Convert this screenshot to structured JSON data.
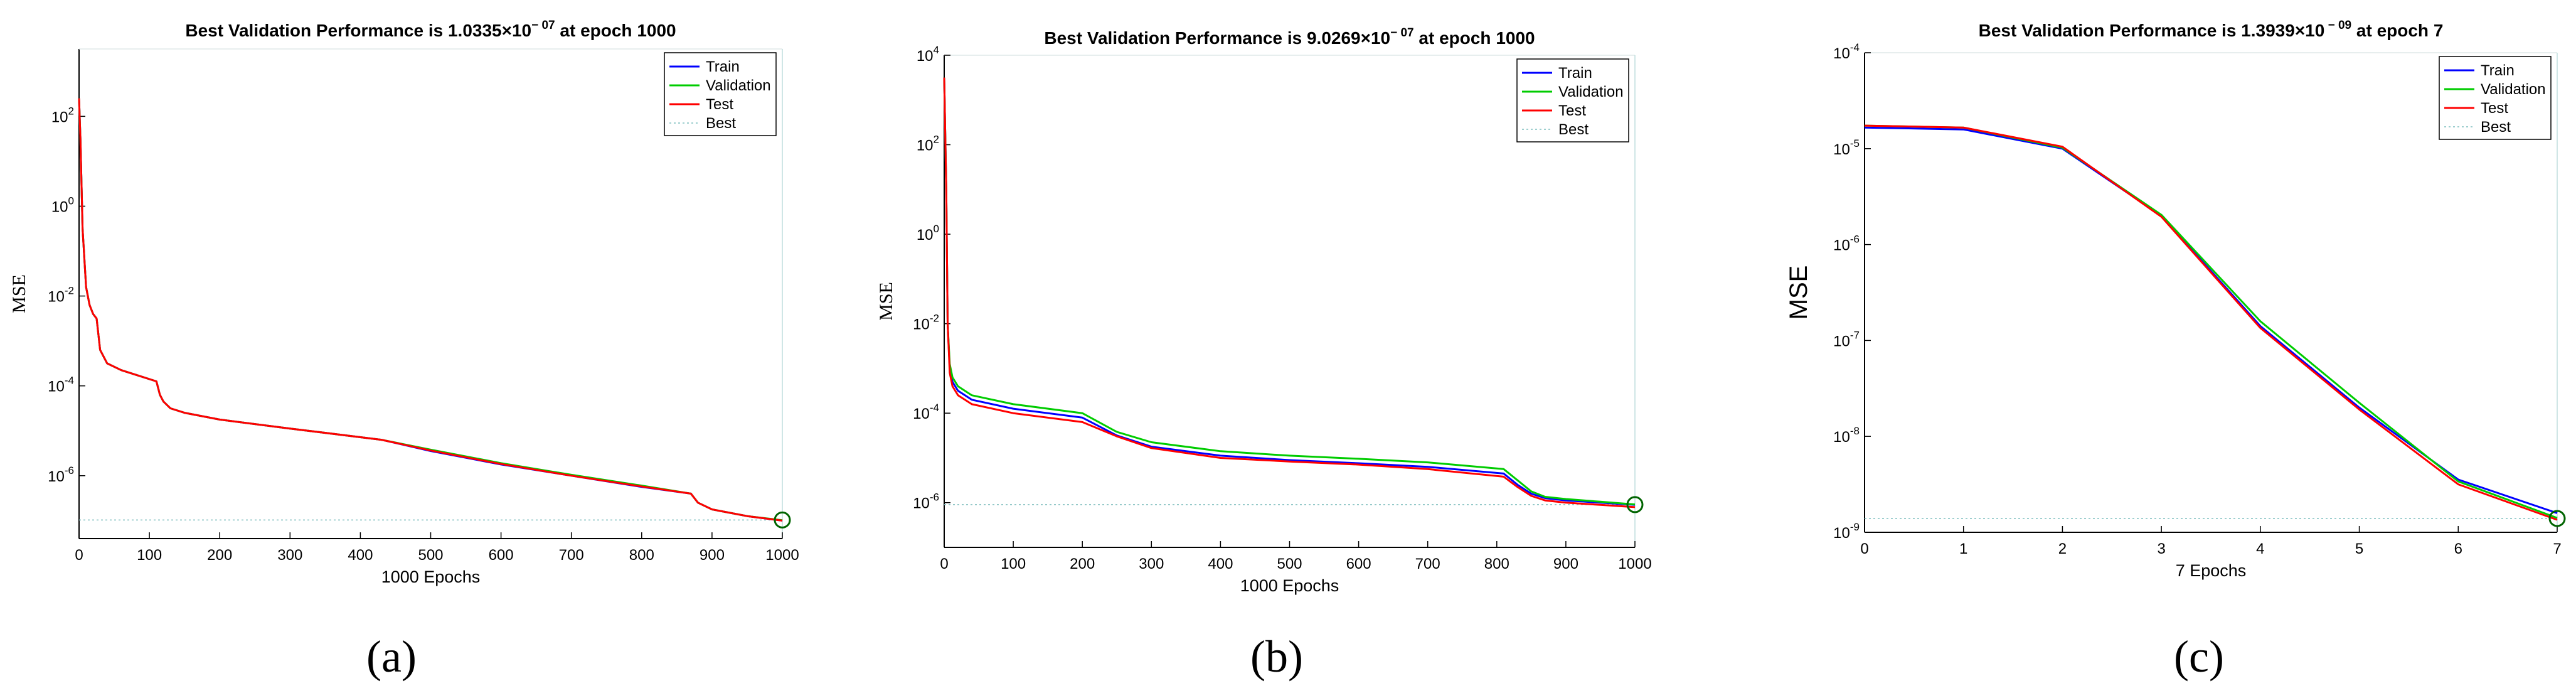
{
  "figure": {
    "captions": [
      "(a)",
      "(b)",
      "(c)"
    ]
  },
  "colors": {
    "train": "#0000ff",
    "validation": "#00cc00",
    "test": "#ff0000",
    "best": "#7fbfbf",
    "marker": "#006400"
  },
  "chart_data": [
    {
      "type": "line",
      "title_main": "Best Validation Performance is 1.0335×10",
      "title_exp": "− 07",
      "title_tail": " at epoch 1000",
      "xlabel": "1000 Epochs",
      "ylabel": "MSE",
      "yscale": "log",
      "xlim": [
        0,
        1000
      ],
      "ylim_exp": [
        -7.4,
        3.5
      ],
      "xticks": [
        0,
        100,
        200,
        300,
        400,
        500,
        600,
        700,
        800,
        900,
        1000
      ],
      "yticks_exp": [
        2,
        0,
        -2,
        -4,
        -6
      ],
      "legend": [
        "Train",
        "Validation",
        "Test",
        "Best"
      ],
      "best": {
        "epoch": 1000,
        "value_exp": -6.986
      },
      "series": [
        {
          "name": "Train",
          "x": [
            0,
            2,
            5,
            10,
            15,
            20,
            25,
            30,
            40,
            60,
            80,
            110,
            115,
            120,
            130,
            150,
            200,
            300,
            430,
            500,
            600,
            700,
            800,
            870,
            880,
            900,
            950,
            1000
          ],
          "y_exp": [
            2.4,
            1.5,
            -0.5,
            -1.8,
            -2.2,
            -2.4,
            -2.5,
            -3.2,
            -3.5,
            -3.65,
            -3.75,
            -3.9,
            -4.2,
            -4.35,
            -4.5,
            -4.6,
            -4.75,
            -4.95,
            -5.2,
            -5.45,
            -5.75,
            -6.0,
            -6.25,
            -6.4,
            -6.6,
            -6.75,
            -6.9,
            -7.0
          ]
        },
        {
          "name": "Validation",
          "x": [
            0,
            2,
            5,
            10,
            15,
            20,
            25,
            30,
            40,
            60,
            80,
            110,
            115,
            120,
            130,
            150,
            200,
            300,
            430,
            500,
            600,
            700,
            800,
            870,
            880,
            900,
            950,
            1000
          ],
          "y_exp": [
            2.4,
            1.5,
            -0.5,
            -1.8,
            -2.2,
            -2.4,
            -2.5,
            -3.2,
            -3.5,
            -3.65,
            -3.75,
            -3.9,
            -4.2,
            -4.35,
            -4.5,
            -4.6,
            -4.75,
            -4.95,
            -5.2,
            -5.42,
            -5.72,
            -5.98,
            -6.22,
            -6.4,
            -6.6,
            -6.75,
            -6.9,
            -6.99
          ]
        },
        {
          "name": "Test",
          "x": [
            0,
            2,
            5,
            10,
            15,
            20,
            25,
            30,
            40,
            60,
            80,
            110,
            115,
            120,
            130,
            150,
            200,
            300,
            430,
            500,
            600,
            700,
            800,
            870,
            880,
            900,
            950,
            1000
          ],
          "y_exp": [
            2.4,
            1.5,
            -0.5,
            -1.8,
            -2.2,
            -2.4,
            -2.5,
            -3.2,
            -3.5,
            -3.65,
            -3.75,
            -3.9,
            -4.2,
            -4.35,
            -4.5,
            -4.6,
            -4.75,
            -4.95,
            -5.2,
            -5.44,
            -5.74,
            -6.0,
            -6.24,
            -6.4,
            -6.6,
            -6.75,
            -6.9,
            -7.0
          ]
        }
      ]
    },
    {
      "type": "line",
      "title_main": "Best Validation Performance is 9.0269×10",
      "title_exp": "− 07",
      "title_tail": " at epoch 1000",
      "xlabel": "1000 Epochs",
      "ylabel": "MSE",
      "yscale": "log",
      "xlim": [
        0,
        1000
      ],
      "ylim_exp": [
        -7,
        4
      ],
      "xticks": [
        0,
        100,
        200,
        300,
        400,
        500,
        600,
        700,
        800,
        900,
        1000
      ],
      "yticks_exp": [
        4,
        2,
        0,
        -2,
        -4,
        -6
      ],
      "legend": [
        "Train",
        "Validation",
        "Test",
        "Best"
      ],
      "best": {
        "epoch": 1000,
        "value_exp": -6.0445
      },
      "series": [
        {
          "name": "Train",
          "x": [
            0,
            3,
            5,
            8,
            12,
            20,
            40,
            100,
            200,
            250,
            300,
            400,
            500,
            600,
            700,
            810,
            830,
            850,
            870,
            900,
            950,
            1000
          ],
          "y_exp": [
            3.5,
            1.0,
            -2.0,
            -3.0,
            -3.3,
            -3.5,
            -3.7,
            -3.9,
            -4.1,
            -4.5,
            -4.75,
            -4.95,
            -5.05,
            -5.12,
            -5.2,
            -5.35,
            -5.6,
            -5.8,
            -5.9,
            -5.95,
            -6.0,
            -6.05
          ]
        },
        {
          "name": "Validation",
          "x": [
            0,
            3,
            5,
            8,
            12,
            20,
            40,
            100,
            200,
            250,
            300,
            400,
            500,
            600,
            700,
            810,
            830,
            850,
            870,
            900,
            950,
            1000
          ],
          "y_exp": [
            3.5,
            1.0,
            -2.0,
            -2.9,
            -3.2,
            -3.4,
            -3.6,
            -3.8,
            -4.0,
            -4.42,
            -4.65,
            -4.85,
            -4.95,
            -5.02,
            -5.1,
            -5.25,
            -5.5,
            -5.75,
            -5.87,
            -5.92,
            -5.98,
            -6.04
          ]
        },
        {
          "name": "Test",
          "x": [
            0,
            3,
            5,
            8,
            12,
            20,
            40,
            100,
            200,
            250,
            300,
            400,
            500,
            600,
            700,
            810,
            830,
            850,
            870,
            900,
            950,
            1000
          ],
          "y_exp": [
            3.5,
            1.0,
            -2.0,
            -3.1,
            -3.4,
            -3.6,
            -3.8,
            -4.0,
            -4.2,
            -4.52,
            -4.78,
            -5.0,
            -5.08,
            -5.15,
            -5.25,
            -5.42,
            -5.65,
            -5.85,
            -5.95,
            -6.0,
            -6.05,
            -6.1
          ]
        }
      ]
    },
    {
      "type": "line",
      "title_main": "Best Validation Performance is 1.3939×10",
      "title_exp": " − 09",
      "title_tail": " at epoch 7",
      "xlabel": "7 Epochs",
      "ylabel": "MSE",
      "yscale": "log",
      "xlim": [
        0,
        7
      ],
      "ylim_exp": [
        -9,
        -4
      ],
      "xticks": [
        0,
        1,
        2,
        3,
        4,
        5,
        6,
        7
      ],
      "yticks_exp": [
        -4,
        -5,
        -6,
        -7,
        -8,
        -9
      ],
      "legend": [
        "Train",
        "Validation",
        "Test",
        "Best"
      ],
      "best": {
        "epoch": 7,
        "value_exp": -8.856
      },
      "series": [
        {
          "name": "Train",
          "x": [
            0,
            1,
            2,
            3,
            4,
            5,
            6,
            7
          ],
          "y_exp": [
            -4.78,
            -4.8,
            -5.0,
            -5.7,
            -6.85,
            -7.7,
            -8.45,
            -8.8
          ]
        },
        {
          "name": "Validation",
          "x": [
            0,
            1,
            2,
            3,
            4,
            5,
            6,
            7
          ],
          "y_exp": [
            -4.76,
            -4.78,
            -4.99,
            -5.69,
            -6.8,
            -7.65,
            -8.47,
            -8.85
          ]
        },
        {
          "name": "Test",
          "x": [
            0,
            1,
            2,
            3,
            4,
            5,
            6,
            7
          ],
          "y_exp": [
            -4.76,
            -4.78,
            -4.98,
            -5.71,
            -6.87,
            -7.72,
            -8.5,
            -8.87
          ]
        }
      ]
    }
  ]
}
